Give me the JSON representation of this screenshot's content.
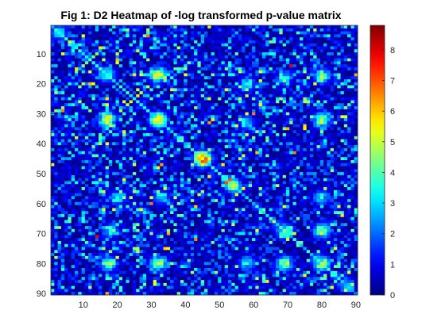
{
  "chart_data": {
    "type": "heatmap",
    "title": "Fig 1: D2 Heatmap of -log transformed p-value  matrix",
    "xlabel": "",
    "ylabel": "",
    "rows": 90,
    "cols": 90,
    "xlim": [
      0.5,
      90.5
    ],
    "ylim": [
      0.5,
      90.5
    ],
    "x_ticks": [
      10,
      20,
      30,
      40,
      50,
      60,
      70,
      80,
      90
    ],
    "y_ticks": [
      10,
      20,
      30,
      40,
      50,
      60,
      70,
      80,
      90
    ],
    "colorbar": {
      "min": 0,
      "max": 8.8,
      "ticks": [
        0,
        1,
        2,
        3,
        4,
        5,
        6,
        7,
        8
      ],
      "colormap": "jet"
    },
    "value_range": [
      0,
      8.8
    ],
    "background_level": 1.2,
    "hotspots": [
      {
        "row": 3,
        "col": 3,
        "value": 3.5
      },
      {
        "row": 17,
        "col": 17,
        "value": 5.0
      },
      {
        "row": 17,
        "col": 32,
        "value": 6.5
      },
      {
        "row": 17,
        "col": 80,
        "value": 4.5
      },
      {
        "row": 32,
        "col": 17,
        "value": 6.5
      },
      {
        "row": 32,
        "col": 32,
        "value": 7.0
      },
      {
        "row": 32,
        "col": 80,
        "value": 5.5
      },
      {
        "row": 45,
        "col": 45,
        "value": 8.8
      },
      {
        "row": 54,
        "col": 54,
        "value": 5.0
      },
      {
        "row": 58,
        "col": 20,
        "value": 4.0
      },
      {
        "row": 58,
        "col": 33,
        "value": 4.0
      },
      {
        "row": 58,
        "col": 80,
        "value": 4.0
      },
      {
        "row": 69,
        "col": 69,
        "value": 5.0
      },
      {
        "row": 69,
        "col": 80,
        "value": 5.0
      },
      {
        "row": 69,
        "col": 18,
        "value": 4.0
      },
      {
        "row": 80,
        "col": 18,
        "value": 5.0
      },
      {
        "row": 80,
        "col": 32,
        "value": 5.0
      },
      {
        "row": 80,
        "col": 69,
        "value": 6.0
      },
      {
        "row": 80,
        "col": 80,
        "value": 5.5
      },
      {
        "row": 87,
        "col": 87,
        "value": 3.0
      }
    ],
    "grid": false,
    "legend": "colorbar-right"
  }
}
